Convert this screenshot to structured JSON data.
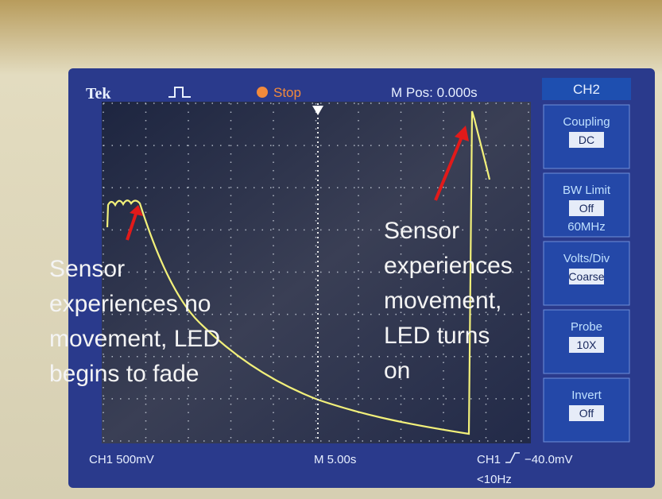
{
  "header": {
    "brand": "Tek",
    "status": "Stop",
    "position": "M Pos: 0.000s"
  },
  "menu": {
    "title": "CH2",
    "items": [
      {
        "label": "Coupling",
        "value": "DC"
      },
      {
        "label": "BW Limit",
        "value": "Off",
        "extra": "60MHz"
      },
      {
        "label": "Volts/Div",
        "value": "Coarse"
      },
      {
        "label": "Probe",
        "value": "10X"
      },
      {
        "label": "Invert",
        "value": "Off"
      }
    ]
  },
  "footer": {
    "channel_scale": "CH1 500mV",
    "timebase": "M 5.00s",
    "trigger_source": "CH1",
    "trigger_level": "−40.0mV",
    "frequency": "<10Hz"
  },
  "annotations": [
    {
      "lines": [
        "Sensor",
        "experiences no",
        "movement, LED",
        "begins to fade"
      ]
    },
    {
      "lines": [
        "Sensor",
        "experiences",
        "movement,",
        "LED turns",
        "on"
      ]
    }
  ]
}
